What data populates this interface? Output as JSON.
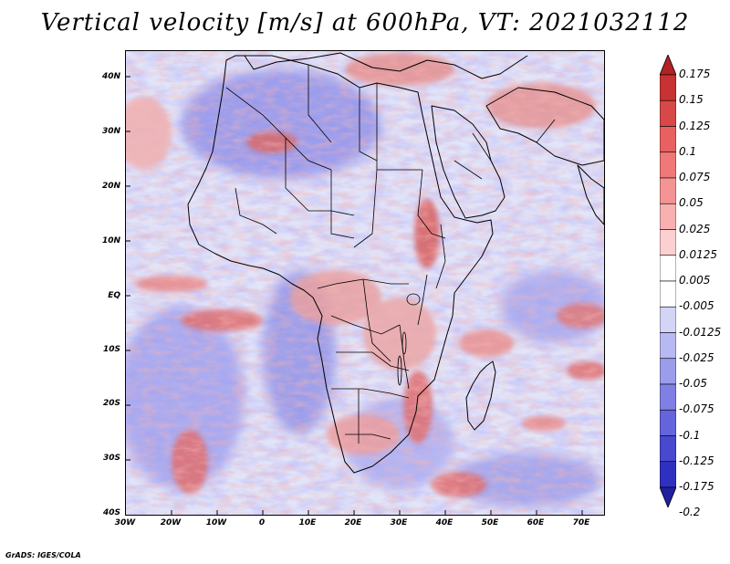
{
  "title": "Vertical velocity [m/s] at 600hPa, VT: 2021032112",
  "credit": "GrADS: IGES/COLA",
  "axes": {
    "lat_labels": [
      "40N",
      "30N",
      "20N",
      "10N",
      "EQ",
      "10S",
      "20S",
      "30S",
      "40S"
    ],
    "lon_labels": [
      "30W",
      "20W",
      "10W",
      "0",
      "10E",
      "20E",
      "30E",
      "40E",
      "50E",
      "60E",
      "70E"
    ]
  },
  "colorbar": {
    "levels": [
      "0.175",
      "0.15",
      "0.125",
      "0.1",
      "0.075",
      "0.05",
      "0.025",
      "0.0125",
      "0.005",
      "-0.005",
      "-0.0125",
      "-0.025",
      "-0.05",
      "-0.075",
      "-0.1",
      "-0.125",
      "-0.175",
      "-0.2"
    ],
    "colors": [
      "#b22222",
      "#c83232",
      "#d84848",
      "#e86060",
      "#f07878",
      "#f49494",
      "#f8b0b0",
      "#fcd0d0",
      "#ffffff",
      "#ffffff",
      "#d4d4f6",
      "#b8b8f2",
      "#9c9cec",
      "#8080e4",
      "#6464dc",
      "#4848d0",
      "#3030c0",
      "#2020a0"
    ]
  },
  "palette": {
    "positive": "#d84848",
    "negative": "#6868d8",
    "land_outline": "#000000"
  }
}
